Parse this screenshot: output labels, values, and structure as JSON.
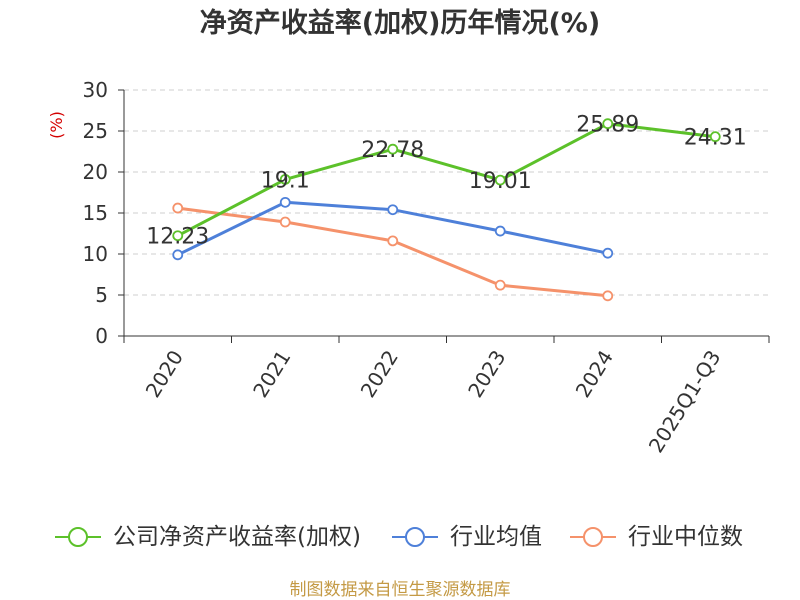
{
  "footer": "制图数据来自恒生聚源数据库",
  "colors": {
    "ylabel": "#d40000",
    "footer": "#c49a45",
    "grid": "#cfcfcf",
    "axis": "#333333"
  },
  "chart_data": {
    "type": "line",
    "title": "净资产收益率(加权)历年情况(%)",
    "ylabel": "(%)",
    "categories": [
      "2020",
      "2021",
      "2022",
      "2023",
      "2024",
      "2025Q1-Q3"
    ],
    "ylim": [
      0,
      30
    ],
    "yticks": [
      0,
      5,
      10,
      15,
      20,
      25,
      30
    ],
    "grid": true,
    "legend_position": "bottom",
    "series": [
      {
        "name": "公司净资产收益率(加权)",
        "color": "#5cc12a",
        "values": [
          12.23,
          19.1,
          22.78,
          19.01,
          25.89,
          24.31
        ],
        "data_labels": true
      },
      {
        "name": "行业均值",
        "color": "#4e80d9",
        "values": [
          9.9,
          16.3,
          15.4,
          12.8,
          10.1,
          null
        ],
        "data_labels": false
      },
      {
        "name": "行业中位数",
        "color": "#f5926b",
        "values": [
          15.6,
          13.9,
          11.6,
          6.2,
          4.9,
          null
        ],
        "data_labels": false
      }
    ]
  }
}
